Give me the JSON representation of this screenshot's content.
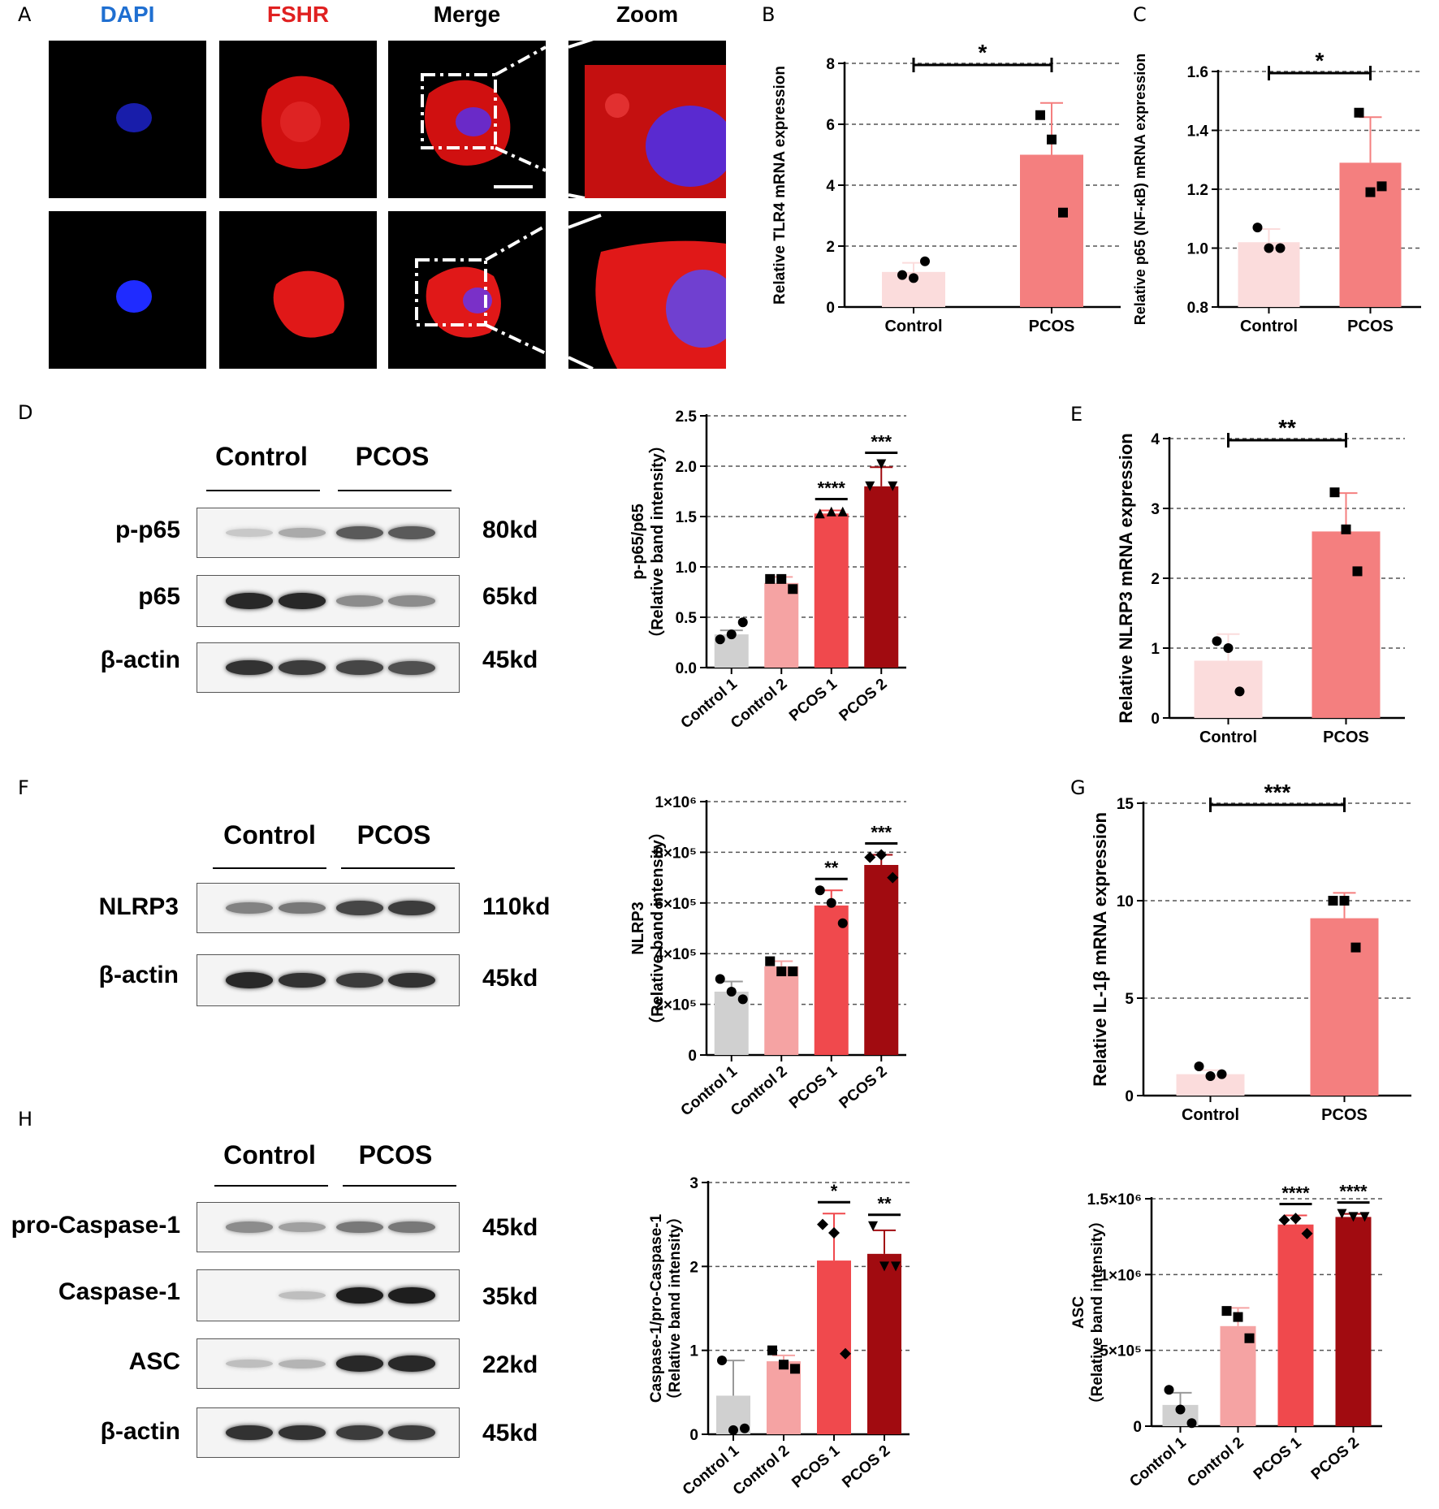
{
  "panels": {
    "A": "A",
    "B": "B",
    "C": "C",
    "D": "D",
    "E": "E",
    "F": "F",
    "G": "G",
    "H": "H"
  },
  "microscopy": {
    "titles": [
      "DAPI",
      "FSHR",
      "Merge",
      "Zoom"
    ],
    "title_colors": [
      "#1f6fd1",
      "#e02020",
      "#000000",
      "#000000"
    ]
  },
  "western": {
    "D": {
      "groups": [
        "Control",
        "PCOS"
      ],
      "rows": [
        {
          "label": "p-p65",
          "kd": "80kd",
          "intensity": [
            0.15,
            0.3,
            0.7,
            0.7
          ]
        },
        {
          "label": "p65",
          "kd": "65kd",
          "intensity": [
            0.95,
            0.95,
            0.45,
            0.45
          ]
        },
        {
          "label": "β-actin",
          "kd": "45kd",
          "intensity": [
            0.9,
            0.85,
            0.8,
            0.75
          ]
        }
      ]
    },
    "F": {
      "groups": [
        "Control",
        "PCOS"
      ],
      "rows": [
        {
          "label": "NLRP3",
          "kd": "110kd",
          "intensity": [
            0.5,
            0.55,
            0.8,
            0.85
          ]
        },
        {
          "label": "β-actin",
          "kd": "45kd",
          "intensity": [
            0.95,
            0.9,
            0.85,
            0.9
          ]
        }
      ]
    },
    "H": {
      "groups": [
        "Control",
        "PCOS"
      ],
      "rows": [
        {
          "label": "pro-Caspase-1",
          "kd": "45kd",
          "intensity": [
            0.45,
            0.35,
            0.55,
            0.55
          ]
        },
        {
          "label": "Caspase-1",
          "kd": "35kd",
          "intensity": [
            0.0,
            0.2,
            1.0,
            1.0
          ]
        },
        {
          "label": "ASC",
          "kd": "22kd",
          "intensity": [
            0.2,
            0.25,
            0.95,
            0.95
          ]
        },
        {
          "label": "β-actin",
          "kd": "45kd",
          "intensity": [
            0.9,
            0.9,
            0.85,
            0.85
          ]
        }
      ]
    }
  },
  "chart_data": [
    {
      "id": "B",
      "type": "bar",
      "categories": [
        "Control",
        "PCOS"
      ],
      "values": [
        1.15,
        5.0
      ],
      "errors": [
        0.3,
        1.7
      ],
      "points": [
        [
          1.05,
          0.95,
          1.5
        ],
        [
          6.3,
          5.5,
          3.1
        ]
      ],
      "markers": [
        "circle",
        "square"
      ],
      "colors": [
        "#fbdcdc",
        "#f47f7f"
      ],
      "ylabel": "Relative TLR4 mRNA expression",
      "ylim": [
        0,
        8
      ],
      "yticks": [
        "0",
        "2",
        "4",
        "6",
        "8"
      ],
      "significance": [
        {
          "from": 0,
          "to": 1,
          "label": "*"
        }
      ]
    },
    {
      "id": "C",
      "type": "bar",
      "categories": [
        "Control",
        "PCOS"
      ],
      "values": [
        1.02,
        1.29
      ],
      "errors": [
        0.045,
        0.155
      ],
      "points": [
        [
          1.07,
          1.0,
          1.0
        ],
        [
          1.46,
          1.19,
          1.21
        ]
      ],
      "markers": [
        "circle",
        "square"
      ],
      "colors": [
        "#fbdcdc",
        "#f47f7f"
      ],
      "ylabel": "Relative p65 (NF-κB) mRNA expression",
      "ylim": [
        0.8,
        1.6
      ],
      "yticks": [
        "0.8",
        "1.0",
        "1.2",
        "1.4",
        "1.6"
      ],
      "significance": [
        {
          "from": 0,
          "to": 1,
          "label": "*"
        }
      ]
    },
    {
      "id": "D",
      "type": "bar",
      "categories": [
        "Control 1",
        "Control 2",
        "PCOS 1",
        "PCOS 2"
      ],
      "values": [
        0.33,
        0.84,
        1.53,
        1.8
      ],
      "errors": [
        0.04,
        0.06,
        0.03,
        0.19
      ],
      "points": [
        [
          0.28,
          0.33,
          0.45
        ],
        [
          0.88,
          0.88,
          0.78
        ],
        [
          1.53,
          1.55,
          1.55
        ],
        [
          1.8,
          2.02,
          1.8
        ]
      ],
      "markers": [
        "circle",
        "square",
        "triangle-up",
        "triangle-down"
      ],
      "colors": [
        "#d0d0d0",
        "#f5a3a3",
        "#f0494d",
        "#a10b10"
      ],
      "ylabel": "p-p65/p65\n（Relative band intensity）",
      "ylim": [
        0,
        2.5
      ],
      "yticks": [
        "0.0",
        "0.5",
        "1.0",
        "1.5",
        "2.0",
        "2.5"
      ],
      "significance": [
        {
          "bar": 2,
          "label": "****"
        },
        {
          "bar": 3,
          "label": "***"
        }
      ]
    },
    {
      "id": "E",
      "type": "bar",
      "categories": [
        "Control",
        "PCOS"
      ],
      "values": [
        0.82,
        2.67
      ],
      "errors": [
        0.38,
        0.55
      ],
      "points": [
        [
          1.1,
          1.0,
          0.38
        ],
        [
          3.23,
          2.7,
          2.1
        ]
      ],
      "markers": [
        "circle",
        "square"
      ],
      "colors": [
        "#fbdcdc",
        "#f47f7f"
      ],
      "ylabel": "Relative NLRP3 mRNA expression",
      "ylim": [
        0,
        4
      ],
      "yticks": [
        "0",
        "1",
        "2",
        "3",
        "4"
      ],
      "significance": [
        {
          "from": 0,
          "to": 1,
          "label": "**"
        }
      ]
    },
    {
      "id": "F",
      "type": "bar",
      "categories": [
        "Control 1",
        "Control 2",
        "PCOS 1",
        "PCOS 2"
      ],
      "values": [
        250000,
        350000,
        590000,
        750000
      ],
      "errors": [
        40000,
        20000,
        60000,
        40000
      ],
      "points": [
        [
          300000,
          250000,
          220000
        ],
        [
          370000,
          330000,
          330000
        ],
        [
          650000,
          600000,
          520000
        ],
        [
          780000,
          790000,
          700000
        ]
      ],
      "markers": [
        "circle",
        "square",
        "circle",
        "diamond"
      ],
      "colors": [
        "#d0d0d0",
        "#f5a3a3",
        "#f0494d",
        "#a10b10"
      ],
      "ylabel": "NLRP3\n（Relative band intensity）",
      "ylim": [
        0,
        1000000
      ],
      "yticks": [
        "0",
        "2×10⁵",
        "4×10⁵",
        "6×10⁵",
        "8×10⁵",
        "1×10⁶"
      ],
      "significance": [
        {
          "bar": 2,
          "label": "**"
        },
        {
          "bar": 3,
          "label": "***"
        }
      ]
    },
    {
      "id": "G",
      "type": "bar",
      "categories": [
        "Control",
        "PCOS"
      ],
      "values": [
        1.1,
        9.1
      ],
      "errors": [
        0.2,
        1.3
      ],
      "points": [
        [
          1.5,
          1.0,
          1.1
        ],
        [
          10.0,
          10.0,
          7.6
        ]
      ],
      "markers": [
        "circle",
        "square"
      ],
      "colors": [
        "#fbdcdc",
        "#f47f7f"
      ],
      "ylabel": "Relative IL-1β mRNA expression",
      "ylim": [
        0,
        15
      ],
      "yticks": [
        "0",
        "5",
        "10",
        "15"
      ],
      "significance": [
        {
          "from": 0,
          "to": 1,
          "label": "***"
        }
      ]
    },
    {
      "id": "H1",
      "type": "bar",
      "categories": [
        "Control 1",
        "Control 2",
        "PCOS 1",
        "PCOS 2"
      ],
      "values": [
        0.46,
        0.87,
        2.07,
        2.15
      ],
      "errors": [
        0.42,
        0.07,
        0.56,
        0.28
      ],
      "points": [
        [
          0.88,
          0.05,
          0.07
        ],
        [
          1.0,
          0.83,
          0.78
        ],
        [
          2.5,
          2.4,
          0.96
        ],
        [
          2.48,
          2.0,
          2.0
        ]
      ],
      "markers": [
        "circle",
        "square",
        "diamond",
        "triangle-down"
      ],
      "colors": [
        "#d0d0d0",
        "#f5a3a3",
        "#f0494d",
        "#a10b10"
      ],
      "ylabel": "Caspase-1/pro-Caspase-1\n（Relative band intensity）",
      "ylim": [
        0,
        3
      ],
      "yticks": [
        "0",
        "1",
        "2",
        "3"
      ],
      "significance": [
        {
          "bar": 2,
          "label": "*"
        },
        {
          "bar": 3,
          "label": "**"
        }
      ]
    },
    {
      "id": "H2",
      "type": "bar",
      "categories": [
        "Control 1",
        "Control 2",
        "PCOS 1",
        "PCOS 2"
      ],
      "values": [
        140000,
        660000,
        1330000,
        1380000
      ],
      "errors": [
        80000,
        120000,
        60000,
        20000
      ],
      "points": [
        [
          240000,
          110000,
          20000
        ],
        [
          760000,
          720000,
          580000
        ],
        [
          1360000,
          1370000,
          1270000
        ],
        [
          1400000,
          1380000,
          1380000
        ]
      ],
      "markers": [
        "circle",
        "square",
        "diamond",
        "triangle-down"
      ],
      "colors": [
        "#d0d0d0",
        "#f5a3a3",
        "#f0494d",
        "#a10b10"
      ],
      "ylabel": "ASC\n（Relative band intensity）",
      "ylim": [
        0,
        1500000
      ],
      "yticks": [
        "0",
        "5×10⁵",
        "1×10⁶",
        "1.5×10⁶"
      ],
      "significance": [
        {
          "bar": 2,
          "label": "****"
        },
        {
          "bar": 3,
          "label": "****"
        }
      ]
    }
  ]
}
